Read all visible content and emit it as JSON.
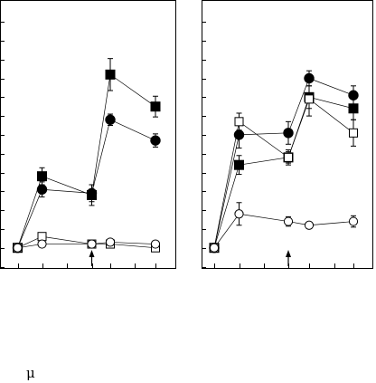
{
  "mu_symbol": "μ",
  "chart_data": [
    {
      "type": "line",
      "panel": "left",
      "x": [
        0,
        1,
        3,
        4,
        6
      ],
      "ylim": [
        0,
        12
      ],
      "x_ticks": [
        0,
        1,
        2,
        3,
        4,
        5,
        6
      ],
      "y_ticks": [
        0,
        1,
        2,
        3,
        4,
        5,
        6,
        7,
        8,
        9,
        10,
        11,
        12,
        13
      ],
      "arrow_at_x": 3,
      "grid": false,
      "series": [
        {
          "marker": "filled-square",
          "values": [
            1.0,
            4.8,
            3.8,
            10.2,
            8.5
          ],
          "errors": [
            0,
            0.45,
            0.55,
            0.85,
            0.55
          ]
        },
        {
          "marker": "filled-circle",
          "values": [
            1.0,
            4.1,
            3.9,
            7.8,
            6.7
          ],
          "errors": [
            0,
            0.4,
            0.45,
            0.3,
            0.35
          ]
        },
        {
          "marker": "open-square",
          "values": [
            1.0,
            1.6,
            1.2,
            1.2,
            1.0
          ],
          "errors": [
            0,
            0.15,
            0.1,
            0.15,
            0.1
          ]
        },
        {
          "marker": "open-circle",
          "values": [
            1.0,
            1.2,
            1.2,
            1.3,
            1.2
          ],
          "errors": [
            0,
            0.1,
            0.1,
            0.1,
            0.1
          ]
        }
      ]
    },
    {
      "type": "line",
      "panel": "right",
      "x": [
        0,
        1,
        3,
        4,
        6
      ],
      "ylim": [
        0,
        12
      ],
      "x_ticks": [
        0,
        1,
        2,
        3,
        4,
        5,
        6
      ],
      "y_ticks": [
        0,
        1,
        2,
        3,
        4,
        5,
        6,
        7,
        8,
        9,
        10,
        11,
        12,
        13
      ],
      "arrow_at_x": 3,
      "grid": false,
      "series": [
        {
          "marker": "filled-square",
          "values": [
            1.0,
            5.4,
            5.8,
            9.0,
            8.4
          ],
          "errors": [
            0,
            0.5,
            0.4,
            0.6,
            0.6
          ]
        },
        {
          "marker": "filled-circle",
          "values": [
            1.0,
            7.0,
            7.1,
            10.0,
            9.1
          ],
          "errors": [
            0,
            0.7,
            0.6,
            0.4,
            0.5
          ]
        },
        {
          "marker": "open-square",
          "values": [
            1.0,
            7.7,
            5.8,
            8.9,
            7.1
          ],
          "errors": [
            0,
            0.45,
            0.3,
            0.9,
            0.7
          ]
        },
        {
          "marker": "open-circle",
          "values": [
            1.0,
            2.8,
            2.4,
            2.2,
            2.4
          ],
          "errors": [
            0,
            0.6,
            0.25,
            0.15,
            0.3
          ]
        }
      ]
    }
  ]
}
